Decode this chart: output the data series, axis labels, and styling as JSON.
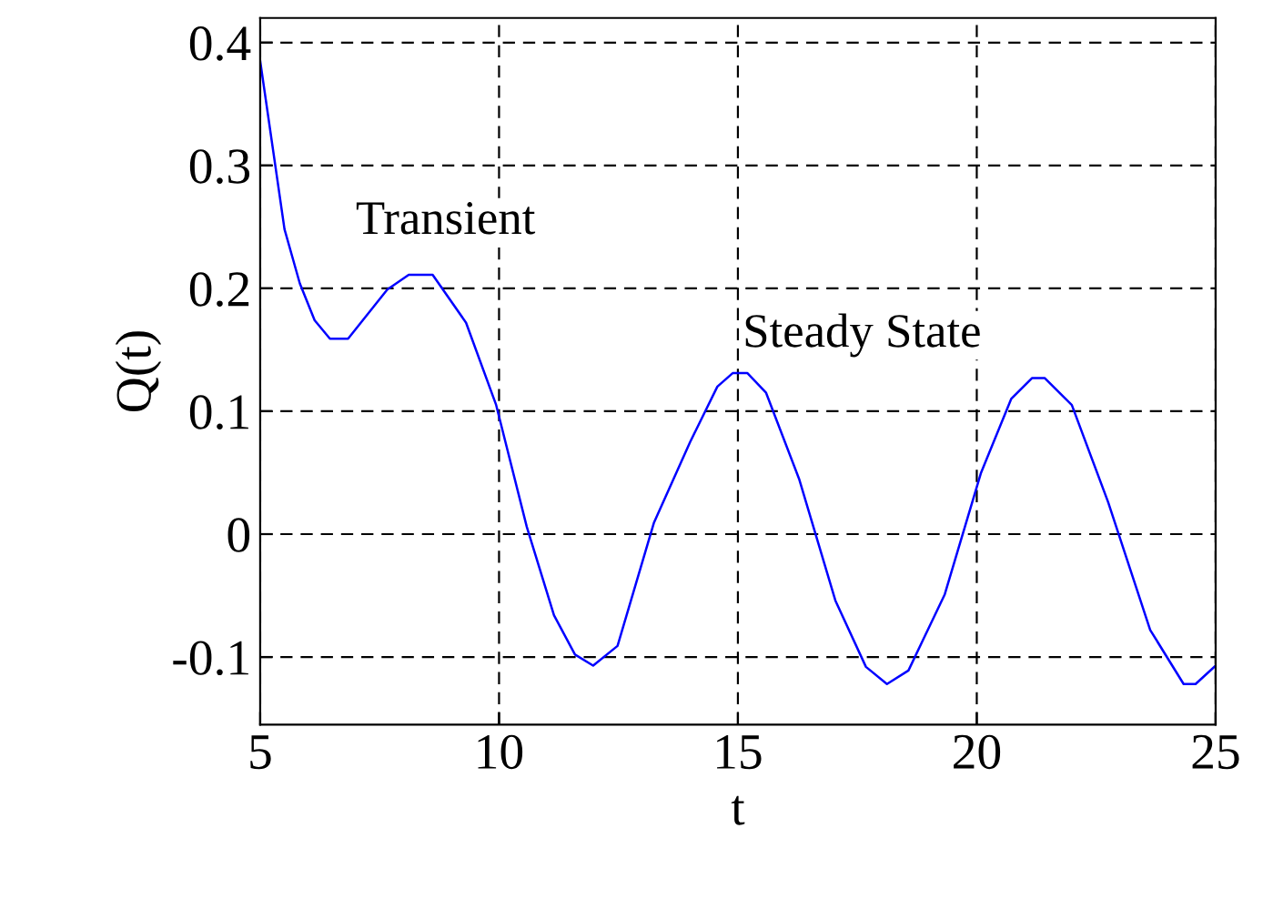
{
  "chart_data": {
    "type": "line",
    "xlabel": "t",
    "ylabel": "Q(t)",
    "annotations": [
      "Transient",
      "Steady State"
    ],
    "xlim": [
      5,
      25
    ],
    "ylim": [
      -0.155,
      0.42
    ],
    "xticks": [
      5,
      10,
      15,
      20,
      25
    ],
    "yticks": [
      {
        "value": -0.1,
        "label": "-0.1"
      },
      0,
      0.1,
      0.2,
      0.3,
      0.4
    ],
    "grid": true,
    "marker": "none",
    "line_style": "solid",
    "series": [
      {
        "color": "#0000ff",
        "x": [
          5,
          5.51,
          5.83,
          6.14,
          6.46,
          6.84,
          7.66,
          8.11,
          8.61,
          9.31,
          9.94,
          10.58,
          11.15,
          11.59,
          11.97,
          12.48,
          13.24,
          14.0,
          14.57,
          14.89,
          15.2,
          15.59,
          16.28,
          17.04,
          17.68,
          18.12,
          18.57,
          19.33,
          20.09,
          20.72,
          21.16,
          21.42,
          21.99,
          22.75,
          23.63,
          24.33,
          24.58,
          25
        ],
        "values": [
          0.385,
          0.248,
          0.204,
          0.174,
          0.159,
          0.159,
          0.199,
          0.211,
          0.211,
          0.172,
          0.105,
          0.006,
          -0.066,
          -0.098,
          -0.107,
          -0.091,
          0.009,
          0.075,
          0.12,
          0.131,
          0.131,
          0.115,
          0.045,
          -0.054,
          -0.108,
          -0.122,
          -0.111,
          -0.049,
          0.05,
          0.11,
          0.127,
          0.127,
          0.105,
          0.026,
          -0.078,
          -0.122,
          -0.122,
          -0.107
        ]
      }
    ]
  }
}
